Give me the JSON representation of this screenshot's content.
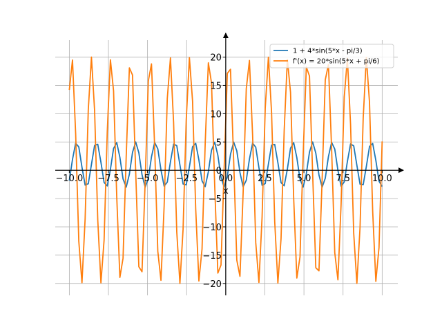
{
  "chart_data": {
    "type": "line",
    "title": "",
    "xlabel": "x",
    "ylabel": "",
    "xlim": [
      -10.9,
      11.0
    ],
    "ylim": [
      -22.1,
      23.0
    ],
    "x_ticks": [
      -10.0,
      -7.5,
      -5.0,
      -2.5,
      0.0,
      2.5,
      5.0,
      7.5,
      10.0
    ],
    "x_tick_labels": [
      "−10.0",
      "−7.5",
      "−5.0",
      "−2.5",
      "0.0",
      "2.5",
      "5.0",
      "7.5",
      "10.0"
    ],
    "y_ticks": [
      -20,
      -15,
      -10,
      -5,
      0,
      5,
      10,
      15,
      20
    ],
    "y_tick_labels": [
      "−20",
      "−15",
      "−10",
      "−5",
      "0",
      "5",
      "10",
      "15",
      "20"
    ],
    "grid": true,
    "legend_position": "top-right",
    "x": {
      "start": -10,
      "end": 10,
      "points": 100
    },
    "series": [
      {
        "name": "1 + 4*sin(5*x - pi/3)",
        "amplitude": 4,
        "frequency": 5,
        "phase": -1.0471975512,
        "offset": 1,
        "color": "#1f77b4"
      },
      {
        "name": "f'(x) = 20*sin(5*x + pi/6)",
        "amplitude": 20,
        "frequency": 5,
        "phase": 0.5235987756,
        "offset": 0,
        "color": "#ff7f0e"
      }
    ]
  }
}
